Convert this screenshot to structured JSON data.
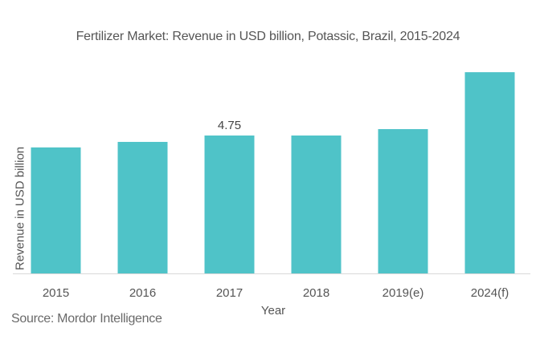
{
  "chart_data": {
    "type": "bar",
    "title": "Fertilizer Market: Revenue in USD billion, Potassic, Brazil, 2015-2024",
    "xlabel": "Year",
    "ylabel": "Revenue in USD billion",
    "categories": [
      "2015",
      "2016",
      "2017",
      "2018",
      "2019(e)",
      "2024(f)"
    ],
    "values": [
      4.34,
      4.53,
      4.75,
      4.75,
      4.97,
      6.93
    ],
    "data_labels": [
      null,
      null,
      "4.75",
      null,
      null,
      null
    ],
    "ylim": [
      0,
      7.2
    ],
    "grid": false,
    "bar_color": "#4fc3c8",
    "axis_color": "#d9d9d9"
  },
  "source": "Source: Mordor Intelligence"
}
